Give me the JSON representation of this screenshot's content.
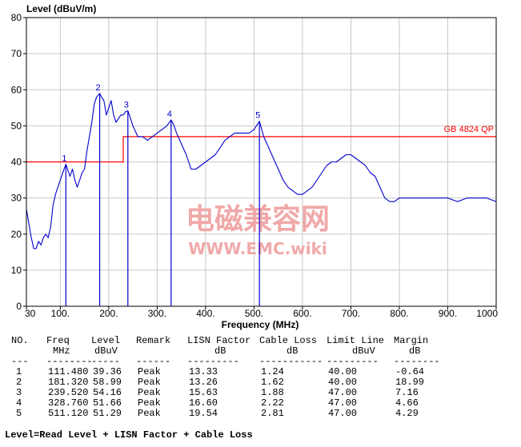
{
  "chart_data": {
    "type": "line",
    "ylabel": "Level (dBuV/m)",
    "xlabel": "Frequency (MHz)",
    "xlim": [
      30,
      1000
    ],
    "ylim": [
      0,
      80
    ],
    "x_ticks": [
      30,
      100,
      200,
      300,
      400,
      500,
      600,
      700,
      800,
      900,
      1000
    ],
    "x_tick_labels": [
      "30",
      "100.",
      "200.",
      "300.",
      "400.",
      "500.",
      "600.",
      "700.",
      "800.",
      "900.",
      "1000"
    ],
    "y_ticks": [
      0,
      10,
      20,
      30,
      40,
      50,
      60,
      70,
      80
    ],
    "y_tick_labels": [
      "0",
      "10",
      "20",
      "30",
      "40",
      "50",
      "60",
      "70",
      "80"
    ],
    "grid": true,
    "trace_color": "#0000cc",
    "limit_color": "#ff0000",
    "limit_label": "GB 4824 QP",
    "limit_line": [
      {
        "x": 30,
        "y": 40
      },
      {
        "x": 230,
        "y": 40
      },
      {
        "x": 230,
        "y": 47
      },
      {
        "x": 1000,
        "y": 47
      }
    ],
    "trace": {
      "x": [
        30,
        35,
        40,
        45,
        50,
        55,
        60,
        65,
        70,
        75,
        80,
        85,
        90,
        95,
        100,
        105,
        111.48,
        115,
        120,
        125,
        130,
        135,
        140,
        145,
        150,
        155,
        160,
        165,
        170,
        175,
        181.32,
        185,
        190,
        195,
        200,
        205,
        210,
        215,
        220,
        225,
        230,
        235,
        239.52,
        245,
        250,
        260,
        270,
        280,
        290,
        300,
        310,
        320,
        328.76,
        335,
        340,
        350,
        360,
        370,
        380,
        390,
        400,
        410,
        420,
        430,
        440,
        450,
        460,
        470,
        480,
        490,
        500,
        505,
        511.12,
        520,
        530,
        540,
        550,
        560,
        570,
        580,
        590,
        600,
        610,
        620,
        630,
        640,
        650,
        660,
        670,
        680,
        690,
        700,
        710,
        720,
        730,
        740,
        750,
        760,
        770,
        780,
        790,
        800,
        820,
        840,
        860,
        880,
        900,
        920,
        940,
        960,
        980,
        1000
      ],
      "y": [
        27,
        23,
        19,
        16,
        16,
        18,
        17,
        19,
        20,
        19,
        22,
        28,
        31,
        33,
        35,
        37,
        39.36,
        38,
        36,
        38,
        35,
        33,
        35,
        37,
        38,
        43,
        47,
        51,
        56,
        58,
        58.99,
        58,
        57,
        53,
        55,
        57,
        53,
        51,
        52,
        53,
        53,
        54,
        54.16,
        52,
        50,
        47,
        47,
        46,
        47,
        48,
        49,
        50,
        51.66,
        50,
        48,
        45,
        42,
        38,
        38,
        39,
        40,
        41,
        42,
        44,
        46,
        47,
        48,
        48,
        48,
        48,
        49,
        50,
        51.29,
        47,
        44,
        41,
        38,
        35,
        33,
        32,
        31,
        31,
        32,
        33,
        35,
        37,
        39,
        40,
        40,
        41,
        42,
        42,
        41,
        40,
        39,
        37,
        36,
        33,
        30,
        29,
        29,
        30,
        30,
        30,
        30,
        30,
        30,
        29,
        30,
        30,
        30,
        29
      ]
    },
    "peaks": [
      {
        "no": "1",
        "freq": 111.48,
        "level": 39.36
      },
      {
        "no": "2",
        "freq": 181.32,
        "level": 58.99
      },
      {
        "no": "3",
        "freq": 239.52,
        "level": 54.16
      },
      {
        "no": "4",
        "freq": 328.76,
        "level": 51.66
      },
      {
        "no": "5",
        "freq": 511.12,
        "level": 51.29
      }
    ]
  },
  "watermark": {
    "line1": "电磁兼容网",
    "line2": "WWW.EMC.wiki",
    "color": "#f0a8a8"
  },
  "table": {
    "headers1": [
      "NO.",
      "Freq",
      "Level",
      "Remark",
      "LISN Factor",
      "Cable Loss",
      "Limit Line",
      "Margin"
    ],
    "headers2": [
      "",
      "MHz",
      "dBuV",
      "",
      "dB",
      "dB",
      "dBuV",
      "dB"
    ],
    "separators": [
      "---",
      "--------",
      "-----",
      "------",
      "---------",
      "-----------",
      "---------",
      "--------"
    ],
    "rows": [
      [
        "1",
        "111.480",
        "39.36",
        "Peak",
        "13.33",
        "1.24",
        "40.00",
        "-0.64"
      ],
      [
        "2",
        "181.320",
        "58.99",
        "Peak",
        "13.26",
        "1.62",
        "40.00",
        "18.99"
      ],
      [
        "3",
        "239.520",
        "54.16",
        "Peak",
        "15.63",
        "1.88",
        "47.00",
        "7.16"
      ],
      [
        "4",
        "328.760",
        "51.66",
        "Peak",
        "16.60",
        "2.22",
        "47.00",
        "4.66"
      ],
      [
        "5",
        "511.120",
        "51.29",
        "Peak",
        "19.54",
        "2.81",
        "47.00",
        "4.29"
      ]
    ]
  },
  "formula": "Level=Read Level + LISN Factor + Cable Loss"
}
